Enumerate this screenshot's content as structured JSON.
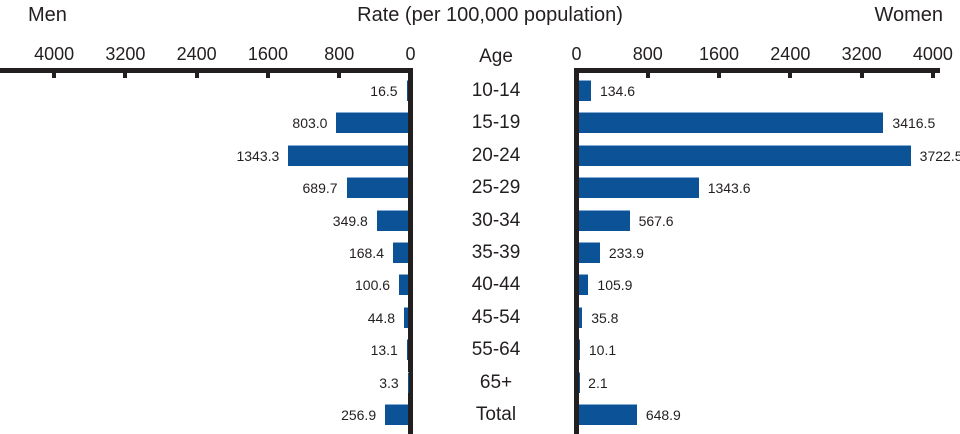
{
  "header": {
    "men_label": "Men",
    "title": "Rate (per 100,000 population)",
    "women_label": "Women",
    "age_header": "Age"
  },
  "colors": {
    "bar": "#0b5396",
    "bar_edge": "#86abd2",
    "axis": "#231f20",
    "text": "#231f20"
  },
  "chart_data": {
    "type": "bar",
    "layout": "population-pyramid",
    "title": "Rate (per 100,000 population)",
    "axis_max": 4000,
    "left_axis_ticks": [
      4000,
      3200,
      2400,
      1600,
      800,
      0
    ],
    "right_axis_ticks": [
      0,
      800,
      1600,
      2400,
      3200,
      4000
    ],
    "categories": [
      "10-14",
      "15-19",
      "20-24",
      "25-29",
      "30-34",
      "35-39",
      "40-44",
      "45-54",
      "55-64",
      "65+",
      "Total"
    ],
    "series": [
      {
        "name": "Men",
        "side": "left",
        "values": [
          16.5,
          803.0,
          1343.3,
          689.7,
          349.8,
          168.4,
          100.6,
          44.8,
          13.1,
          3.3,
          256.9
        ]
      },
      {
        "name": "Women",
        "side": "right",
        "values": [
          134.6,
          3416.5,
          3722.5,
          1343.6,
          567.6,
          233.9,
          105.9,
          35.8,
          10.1,
          2.1,
          648.9
        ]
      }
    ],
    "value_labels": {
      "men": [
        "16.5",
        "803.0",
        "1343.3",
        "689.7",
        "349.8",
        "168.4",
        "100.6",
        "44.8",
        "13.1",
        "3.3",
        "256.9"
      ],
      "women": [
        "134.6",
        "3416.5",
        "3722.5",
        "1343.6",
        "567.6",
        "233.9",
        "105.9",
        "35.8",
        "10.1",
        "2.1",
        "648.9"
      ]
    },
    "grid": false,
    "legend": false
  }
}
